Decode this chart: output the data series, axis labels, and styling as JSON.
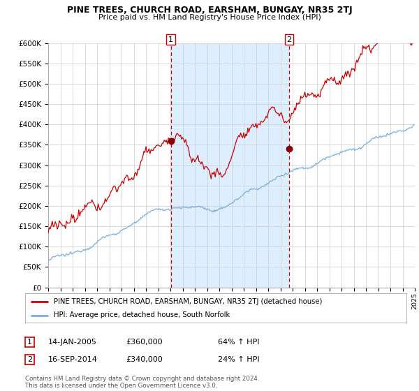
{
  "title": "PINE TREES, CHURCH ROAD, EARSHAM, BUNGAY, NR35 2TJ",
  "subtitle": "Price paid vs. HM Land Registry's House Price Index (HPI)",
  "legend_line1": "PINE TREES, CHURCH ROAD, EARSHAM, BUNGAY, NR35 2TJ (detached house)",
  "legend_line2": "HPI: Average price, detached house, South Norfolk",
  "annotation1_date": "14-JAN-2005",
  "annotation1_price": "£360,000",
  "annotation1_hpi": "64% ↑ HPI",
  "annotation2_date": "16-SEP-2014",
  "annotation2_price": "£340,000",
  "annotation2_hpi": "24% ↑ HPI",
  "footer": "Contains HM Land Registry data © Crown copyright and database right 2024.\nThis data is licensed under the Open Government Licence v3.0.",
  "red_line_color": "#cc0000",
  "blue_line_color": "#7aaddc",
  "shaded_region_color": "#ddeeff",
  "vline_color": "#cc0000",
  "dot_color": "#880000",
  "grid_color": "#cccccc",
  "background_color": "#ffffff",
  "ylim": [
    0,
    600000
  ],
  "yticks": [
    0,
    50000,
    100000,
    150000,
    200000,
    250000,
    300000,
    350000,
    400000,
    450000,
    500000,
    550000,
    600000
  ],
  "sale1_x": 2005.04,
  "sale1_y": 360000,
  "sale2_x": 2014.71,
  "sale2_y": 340000,
  "xmin": 1995,
  "xmax": 2025
}
